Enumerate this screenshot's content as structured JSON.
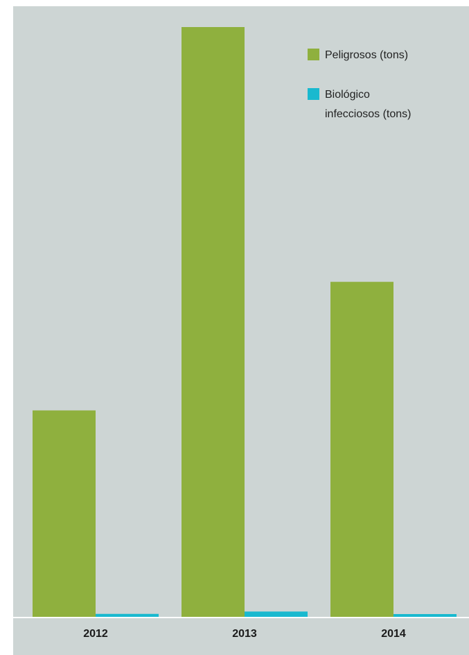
{
  "colors": {
    "background": "#cdd5d4",
    "peligrosos": "#8fb03e",
    "biologico": "#19b9cf",
    "baseline": "#ffffff"
  },
  "chart_data": {
    "type": "bar",
    "title": "",
    "xlabel": "",
    "ylabel": "",
    "categories": [
      "2012",
      "2013",
      "2014"
    ],
    "ylim": [
      0,
      100
    ],
    "grid": false,
    "legend_position": "top-right",
    "series": [
      {
        "name": "Peligrosos (tons)",
        "legend_lines": [
          "Peligrosos (tons)"
        ],
        "color": "#8fb03e",
        "values": [
          35.0,
          100.0,
          56.8
        ]
      },
      {
        "name": "Biológico infecciosos (tons)",
        "legend_lines": [
          "Biológico",
          "infecciosos (tons)"
        ],
        "color": "#19b9cf",
        "values": [
          0.5,
          0.9,
          0.3
        ]
      }
    ]
  }
}
